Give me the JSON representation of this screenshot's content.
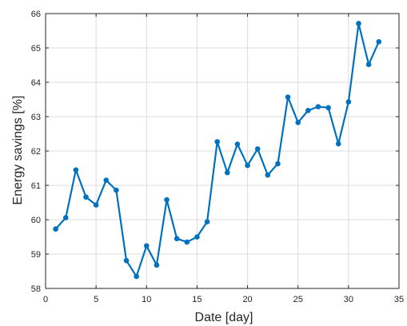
{
  "chart_data": {
    "type": "line",
    "xlabel": "Date [day]",
    "ylabel": "Energy savings [%]",
    "xlim": [
      0,
      35
    ],
    "ylim": [
      58,
      66
    ],
    "xticks": [
      0,
      5,
      10,
      15,
      20,
      25,
      30,
      35
    ],
    "yticks": [
      58,
      59,
      60,
      61,
      62,
      63,
      64,
      65,
      66
    ],
    "grid": true,
    "color": "#0072BD",
    "series": [
      {
        "x": [
          1,
          2,
          3,
          4,
          5,
          6,
          7,
          8,
          9,
          10,
          11,
          12,
          13,
          14,
          15,
          16,
          17,
          18,
          19,
          20,
          21,
          22,
          23,
          24,
          25,
          26,
          27,
          28,
          29,
          30,
          31,
          32,
          33
        ],
        "y": [
          59.73,
          60.06,
          61.45,
          60.66,
          60.43,
          61.15,
          60.86,
          58.81,
          58.35,
          59.24,
          58.68,
          60.58,
          59.45,
          59.35,
          59.5,
          59.94,
          62.27,
          61.37,
          62.2,
          61.58,
          62.06,
          61.3,
          61.63,
          63.57,
          62.83,
          63.18,
          63.29,
          63.26,
          62.21,
          63.43,
          65.71,
          64.52,
          65.18
        ]
      }
    ]
  }
}
